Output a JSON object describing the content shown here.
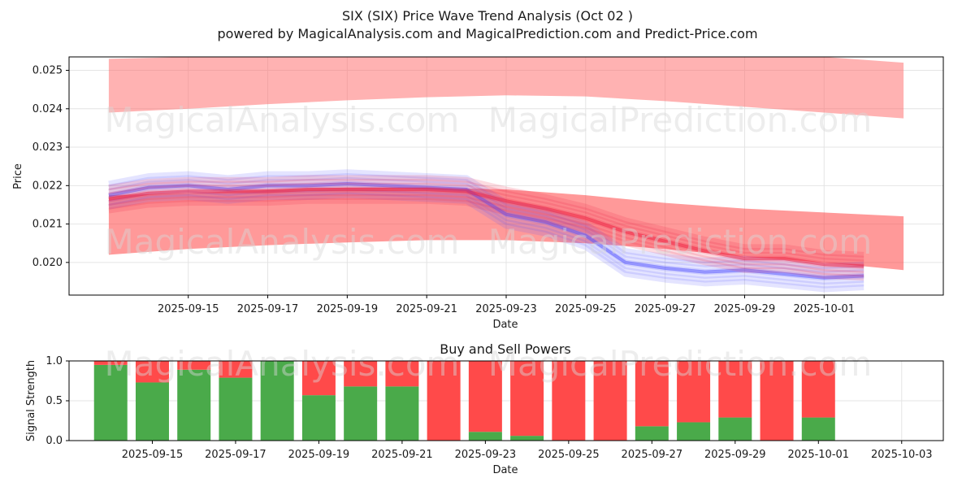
{
  "title": {
    "line1": "SIX (SIX) Price Wave Trend Analysis (Oct 02 )",
    "line2": "powered by MagicalAnalysis.com and MagicalPrediction.com and Predict-Price.com"
  },
  "watermarks": [
    "MagicalAnalysis.com",
    "MagicalPrediction.com"
  ],
  "chart_data": [
    {
      "type": "area",
      "name": "price-wave-trend",
      "title": "",
      "xlabel": "Date",
      "ylabel": "Price",
      "grid": true,
      "xlim": [
        "2025-09-12",
        "2025-10-04"
      ],
      "ylim": [
        0.01915,
        0.02535
      ],
      "y_ticks": [
        "0.020",
        "0.021",
        "0.022",
        "0.023",
        "0.024",
        "0.025"
      ],
      "x_ticks": [
        "2025-09-15",
        "2025-09-17",
        "2025-09-19",
        "2025-09-21",
        "2025-09-23",
        "2025-09-25",
        "2025-09-27",
        "2025-09-29",
        "2025-10-01"
      ],
      "series": [
        {
          "name": "upper-prediction-band",
          "color": "#ff6666",
          "x": [
            "2025-09-13",
            "2025-09-15",
            "2025-09-17",
            "2025-09-19",
            "2025-09-21",
            "2025-09-23",
            "2025-09-25",
            "2025-09-27",
            "2025-09-29",
            "2025-10-01",
            "2025-10-03"
          ],
          "upper": [
            0.0253,
            0.02535,
            0.02535,
            0.02535,
            0.02535,
            0.02535,
            0.02535,
            0.02535,
            0.02535,
            0.02535,
            0.0252
          ],
          "lower": [
            0.0239,
            0.024,
            0.02412,
            0.02422,
            0.0243,
            0.02435,
            0.02432,
            0.0242,
            0.02405,
            0.0239,
            0.02375
          ]
        },
        {
          "name": "lower-prediction-band",
          "color": "#ff3333",
          "x": [
            "2025-09-13",
            "2025-09-15",
            "2025-09-17",
            "2025-09-19",
            "2025-09-21",
            "2025-09-23",
            "2025-09-25",
            "2025-09-27",
            "2025-09-29",
            "2025-10-01",
            "2025-10-03"
          ],
          "upper": [
            0.02175,
            0.0218,
            0.0219,
            0.02195,
            0.02195,
            0.0219,
            0.02175,
            0.02155,
            0.0214,
            0.0213,
            0.0212
          ],
          "lower": [
            0.0202,
            0.02035,
            0.02045,
            0.02052,
            0.02058,
            0.02058,
            0.0205,
            0.02035,
            0.02015,
            0.02,
            0.0198
          ]
        },
        {
          "name": "blue-wave-mean",
          "color": "#5555ff",
          "x": [
            "2025-09-13",
            "2025-09-14",
            "2025-09-15",
            "2025-09-16",
            "2025-09-17",
            "2025-09-18",
            "2025-09-19",
            "2025-09-20",
            "2025-09-21",
            "2025-09-22",
            "2025-09-23",
            "2025-09-24",
            "2025-09-25",
            "2025-09-26",
            "2025-09-27",
            "2025-09-28",
            "2025-09-29",
            "2025-09-30",
            "2025-10-01",
            "2025-10-02"
          ],
          "values": [
            0.02175,
            0.02195,
            0.022,
            0.0219,
            0.022,
            0.022,
            0.02205,
            0.022,
            0.02195,
            0.0219,
            0.02125,
            0.02105,
            0.0207,
            0.02,
            0.01985,
            0.01975,
            0.0198,
            0.0197,
            0.0196,
            0.01965
          ]
        },
        {
          "name": "red-wave-mean",
          "color": "#ee2244",
          "x": [
            "2025-09-13",
            "2025-09-14",
            "2025-09-15",
            "2025-09-16",
            "2025-09-17",
            "2025-09-18",
            "2025-09-19",
            "2025-09-20",
            "2025-09-21",
            "2025-09-22",
            "2025-09-23",
            "2025-09-24",
            "2025-09-25",
            "2025-09-26",
            "2025-09-27",
            "2025-09-28",
            "2025-09-29",
            "2025-09-30",
            "2025-10-01",
            "2025-10-02"
          ],
          "values": [
            0.02165,
            0.0218,
            0.02185,
            0.02185,
            0.02185,
            0.0219,
            0.0219,
            0.0219,
            0.0219,
            0.02185,
            0.0216,
            0.0214,
            0.02115,
            0.0208,
            0.02055,
            0.0203,
            0.0201,
            0.0201,
            0.01995,
            0.0199
          ]
        }
      ]
    },
    {
      "type": "bar",
      "name": "buy-sell-powers",
      "title": "Buy and Sell Powers",
      "xlabel": "Date",
      "ylabel": "Signal Strength",
      "grid": true,
      "xlim": [
        "2025-09-13",
        "2025-10-04"
      ],
      "ylim": [
        0,
        1
      ],
      "y_ticks": [
        "0.0",
        "0.5",
        "1.0"
      ],
      "x_ticks": [
        "2025-09-15",
        "2025-09-17",
        "2025-09-19",
        "2025-09-21",
        "2025-09-23",
        "2025-09-25",
        "2025-09-27",
        "2025-09-29",
        "2025-10-01",
        "2025-10-03"
      ],
      "categories": [
        "2025-09-14",
        "2025-09-15",
        "2025-09-16",
        "2025-09-17",
        "2025-09-18",
        "2025-09-19",
        "2025-09-20",
        "2025-09-21",
        "2025-09-22",
        "2025-09-23",
        "2025-09-24",
        "2025-09-25",
        "2025-09-26",
        "2025-09-27",
        "2025-09-28",
        "2025-09-29",
        "2025-09-30",
        "2025-10-01",
        "2025-10-02"
      ],
      "series": [
        {
          "name": "Buy",
          "color": "#4aaa4a",
          "values": [
            0.95,
            0.73,
            0.89,
            0.79,
            1.0,
            0.57,
            0.68,
            0.68,
            0.0,
            0.11,
            0.06,
            0.0,
            0.0,
            0.18,
            0.23,
            0.29,
            0.0,
            0.29,
            0.0
          ]
        },
        {
          "name": "Sell",
          "color": "#ff4a4a",
          "values": [
            0.05,
            0.27,
            0.11,
            0.21,
            0.0,
            0.43,
            0.32,
            0.32,
            1.0,
            0.89,
            0.94,
            1.0,
            1.0,
            0.82,
            0.77,
            0.71,
            1.0,
            0.71,
            0.0
          ]
        }
      ]
    }
  ]
}
